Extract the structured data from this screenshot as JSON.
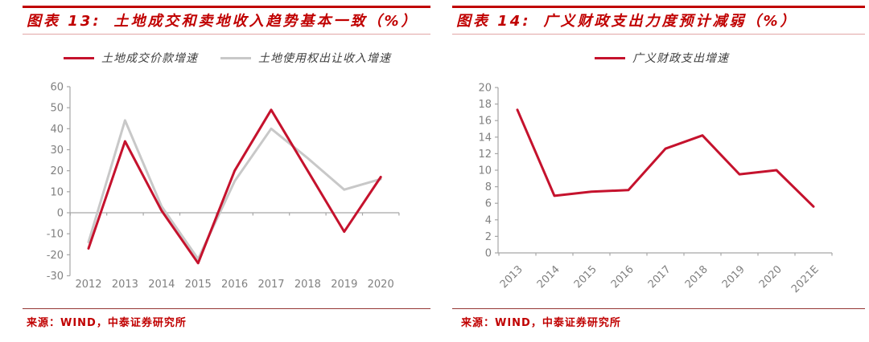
{
  "accent_red": "#C00000",
  "rule_dark_red": "#953735",
  "axis_gray": "#A6A6A6",
  "label_gray": "#808080",
  "figures": [
    {
      "label": "图表 13:",
      "title": "土地成交和卖地收入趋势基本一致（%）",
      "source": "来源：WIND，中泰证券研究所"
    },
    {
      "label": "图表 14:",
      "title": "广义财政支出力度预计减弱（%）",
      "source": "来源：WIND，中泰证券研究所"
    }
  ],
  "chart_data": [
    {
      "type": "line",
      "title": "土地成交和卖地收入趋势基本一致（%）",
      "categories": [
        "2012",
        "2013",
        "2014",
        "2015",
        "2016",
        "2017",
        "2018",
        "2019",
        "2020"
      ],
      "series": [
        {
          "name": "土地成交价款增速",
          "color": "#C5122D",
          "values": [
            -17,
            34,
            1,
            -24,
            20,
            49,
            20,
            -9,
            17
          ]
        },
        {
          "name": "土地使用权出让收入增速",
          "color": "#C8C8C8",
          "values": [
            -14,
            44,
            3,
            -22,
            15,
            40,
            26,
            11,
            16
          ]
        }
      ],
      "ylim": [
        -30,
        60
      ],
      "ytick_step": 10,
      "yticks": [
        60,
        50,
        40,
        30,
        20,
        10,
        0,
        -10,
        -20,
        -30
      ],
      "legend_position": "top",
      "grid": false,
      "xtick_rotation": 0
    },
    {
      "type": "line",
      "title": "广义财政支出力度预计减弱（%）",
      "categories": [
        "2013",
        "2014",
        "2015",
        "2016",
        "2017",
        "2018",
        "2019",
        "2020",
        "2021E"
      ],
      "series": [
        {
          "name": "广义财政支出增速",
          "color": "#C5122D",
          "values": [
            17.3,
            6.9,
            7.4,
            7.6,
            12.6,
            14.2,
            9.5,
            10,
            5.6
          ]
        }
      ],
      "ylim": [
        0,
        20
      ],
      "ytick_step": 2,
      "yticks": [
        20,
        18,
        16,
        14,
        12,
        10,
        8,
        6,
        4,
        2,
        0
      ],
      "legend_position": "top",
      "grid": false,
      "xtick_rotation": -45
    }
  ]
}
